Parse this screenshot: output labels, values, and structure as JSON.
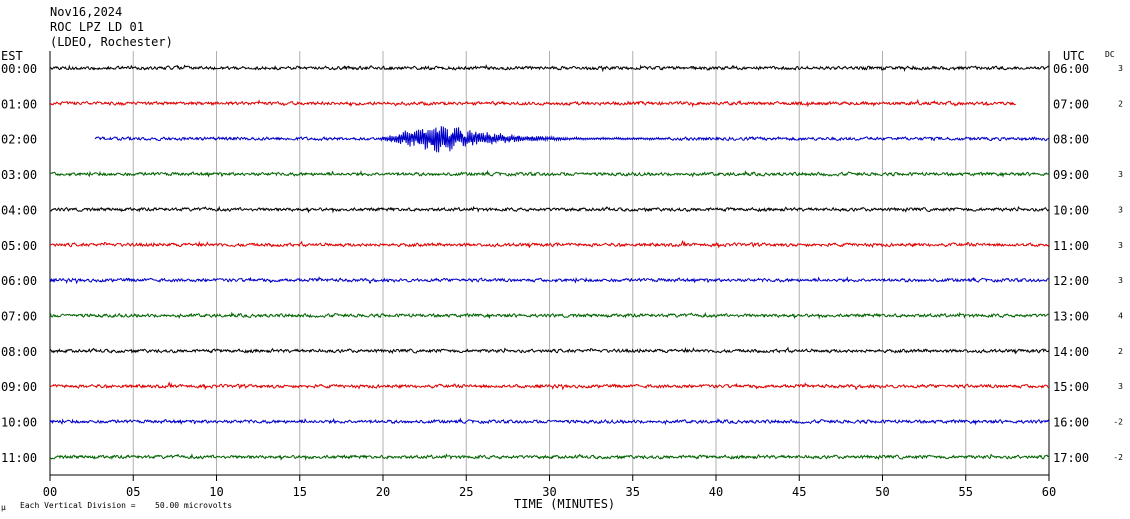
{
  "header": {
    "date": "Nov16,2024",
    "station": "ROC LPZ LD 01",
    "network": "(LDEO, Rochester)"
  },
  "left_tz": "EST",
  "right_tz": "UTC",
  "dc_label": "DC",
  "xlabel": "TIME (MINUTES)",
  "footer": {
    "mark": "μ",
    "division_text": "Each Vertical Division =",
    "division_value": "50.00 microvolts"
  },
  "chart_data": {
    "type": "line",
    "title": "",
    "xlabel": "TIME (MINUTES)",
    "xlim": [
      0,
      60
    ],
    "x_ticks": [
      "00",
      "05",
      "10",
      "15",
      "20",
      "25",
      "30",
      "35",
      "40",
      "45",
      "50",
      "55",
      "60"
    ],
    "grid": true,
    "series_colors": [
      "#000000",
      "#e00000",
      "#0000c8",
      "#006400"
    ],
    "rows": [
      {
        "est": "00:00",
        "utc": "06:00",
        "dc": "3",
        "color": "#000000",
        "start_min": 0,
        "end_min": 60,
        "event": null
      },
      {
        "est": "01:00",
        "utc": "07:00",
        "dc": "2",
        "color": "#e00000",
        "start_min": 0,
        "end_min": 58,
        "event": null
      },
      {
        "est": "02:00",
        "utc": "08:00",
        "dc": "",
        "color": "#0000c8",
        "start_min": 2.7,
        "end_min": 60,
        "event": {
          "onset_min": 19.5,
          "peak_min": 23.5,
          "end_min": 37,
          "peak_amplitude_divisions": 0.95
        }
      },
      {
        "est": "03:00",
        "utc": "09:00",
        "dc": "3",
        "color": "#006400",
        "start_min": 0,
        "end_min": 60,
        "event": null
      },
      {
        "est": "04:00",
        "utc": "10:00",
        "dc": "3",
        "color": "#000000",
        "start_min": 0,
        "end_min": 60,
        "event": null
      },
      {
        "est": "05:00",
        "utc": "11:00",
        "dc": "3",
        "color": "#e00000",
        "start_min": 0,
        "end_min": 60,
        "event": null
      },
      {
        "est": "06:00",
        "utc": "12:00",
        "dc": "3",
        "color": "#0000c8",
        "start_min": 0,
        "end_min": 60,
        "event": null
      },
      {
        "est": "07:00",
        "utc": "13:00",
        "dc": "4",
        "color": "#006400",
        "start_min": 0,
        "end_min": 60,
        "event": null
      },
      {
        "est": "08:00",
        "utc": "14:00",
        "dc": "2",
        "color": "#000000",
        "start_min": 0,
        "end_min": 60,
        "event": null
      },
      {
        "est": "09:00",
        "utc": "15:00",
        "dc": "3",
        "color": "#e00000",
        "start_min": 0,
        "end_min": 60,
        "event": null
      },
      {
        "est": "10:00",
        "utc": "16:00",
        "dc": "-2",
        "color": "#0000c8",
        "start_min": 0,
        "end_min": 60,
        "event": null
      },
      {
        "est": "11:00",
        "utc": "17:00",
        "dc": "-2",
        "color": "#006400",
        "start_min": 0,
        "end_min": 60,
        "event": null
      }
    ]
  }
}
